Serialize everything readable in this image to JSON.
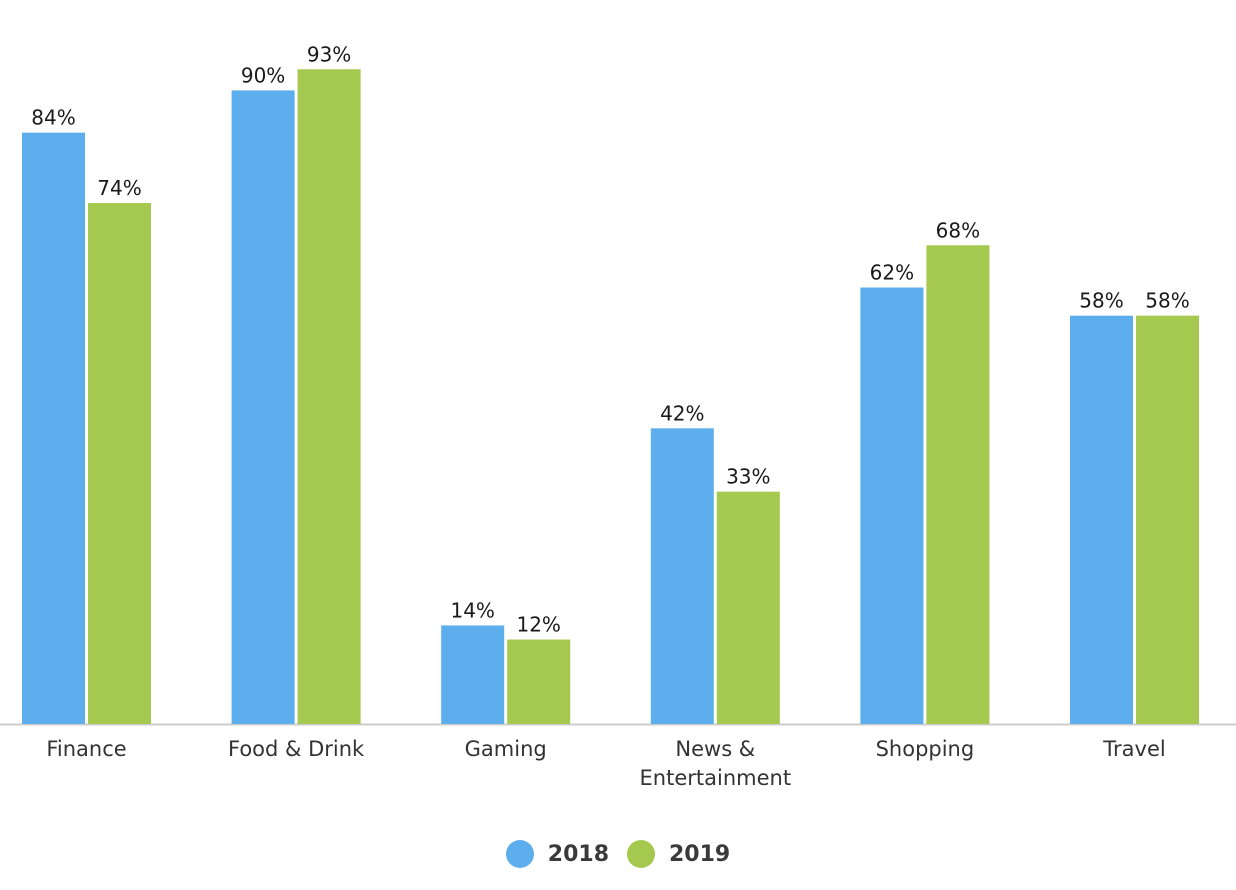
{
  "chart_data": {
    "type": "bar",
    "categories": [
      [
        "Finance"
      ],
      [
        "Food & Drink"
      ],
      [
        "Gaming"
      ],
      [
        "News &",
        "Entertainment"
      ],
      [
        "Shopping"
      ],
      [
        "Travel"
      ]
    ],
    "series": [
      {
        "name": "2018",
        "color": "#5daeed",
        "values": [
          84,
          90,
          14,
          42,
          62,
          58
        ],
        "labels": [
          "84%",
          "90%",
          "14%",
          "42%",
          "62%",
          "58%"
        ]
      },
      {
        "name": "2019",
        "color": "#a5c84e",
        "values": [
          74,
          93,
          12,
          33,
          68,
          58
        ],
        "labels": [
          "74%",
          "93%",
          "12%",
          "33%",
          "68%",
          "58%"
        ]
      }
    ],
    "ylim": [
      0,
      100
    ],
    "grid": false,
    "legend_position": "bottom-center",
    "axis_color": "#cccccc"
  }
}
